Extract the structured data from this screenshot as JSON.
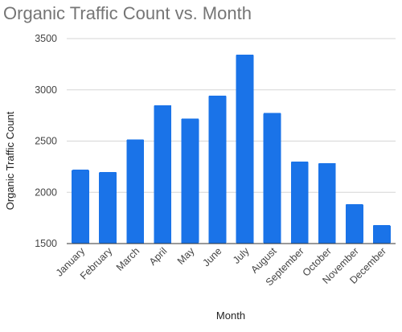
{
  "chart_data": {
    "type": "bar",
    "title": "Organic Traffic Count vs. Month",
    "xlabel": "Month",
    "ylabel": "Organic Traffic Count",
    "categories": [
      "January",
      "February",
      "March",
      "April",
      "May",
      "June",
      "July",
      "August",
      "September",
      "October",
      "November",
      "December"
    ],
    "values": [
      2220,
      2200,
      2515,
      2850,
      2720,
      2945,
      3345,
      2775,
      2300,
      2285,
      1885,
      1680
    ],
    "ylim": [
      1500,
      3500
    ],
    "yticks": [
      1500,
      2000,
      2500,
      3000,
      3500
    ],
    "grid": true,
    "legend": "none",
    "bar_color": "#1a73e8"
  }
}
